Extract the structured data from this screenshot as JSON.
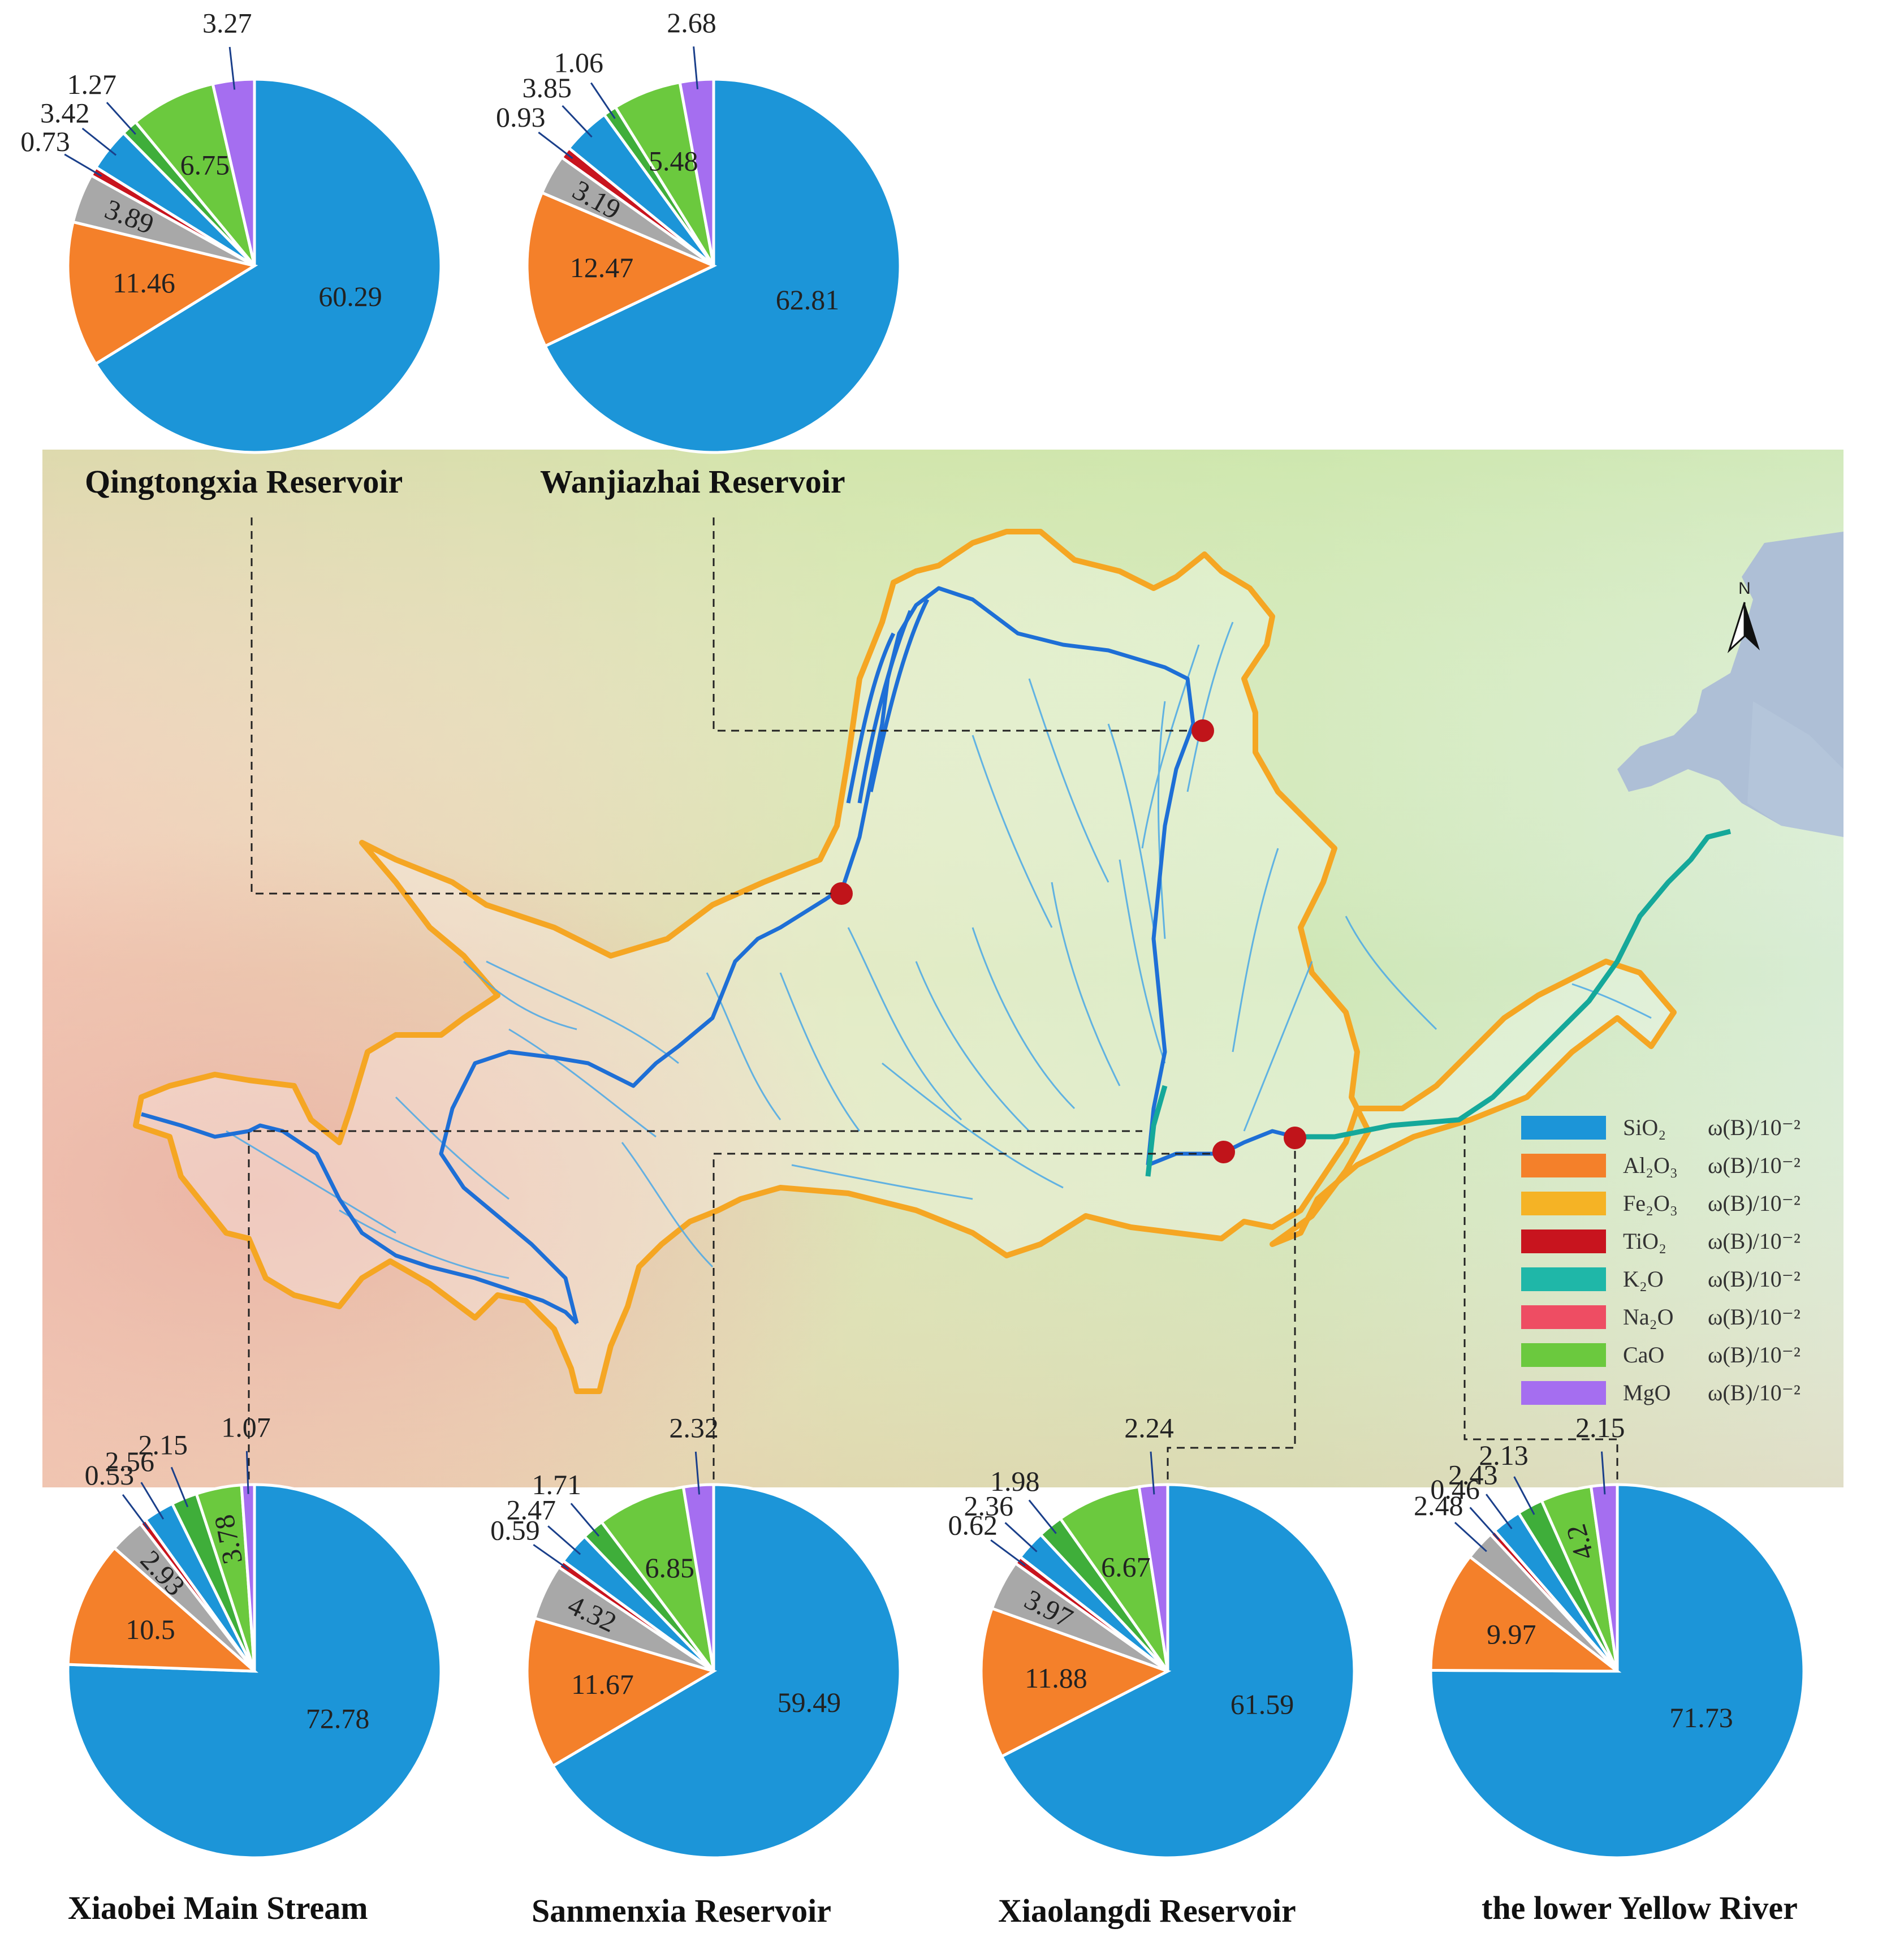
{
  "components": [
    {
      "key": "SiO2",
      "label": "SiO₂",
      "color": "#1c95d8"
    },
    {
      "key": "Al2O3",
      "label": "Al₂O₃",
      "color": "#f4802a"
    },
    {
      "key": "Fe2O3",
      "label": "Fe₂O₃",
      "color": "#f5b325"
    },
    {
      "key": "TiO2",
      "label": "TiO₂",
      "color": "#c8141e"
    },
    {
      "key": "K2O",
      "label": "K₂O",
      "color": "#1fb7a8"
    },
    {
      "key": "Na2O",
      "label": "Na₂O",
      "color": "#ee4d63"
    },
    {
      "key": "CaO",
      "label": "CaO",
      "color": "#6bc93e"
    },
    {
      "key": "MgO",
      "label": "MgO",
      "color": "#a56ef0"
    }
  ],
  "legend": {
    "unit": "ω(B)/10⁻²",
    "items": [
      {
        "comp": "SiO₂",
        "color": "#1c95d8"
      },
      {
        "comp": "Al₂O₃",
        "color": "#f4802a"
      },
      {
        "comp": "Fe₂O₃",
        "color": "#f5b325"
      },
      {
        "comp": "TiO₂",
        "color": "#c8141e"
      },
      {
        "comp": "K₂O",
        "color": "#1fb7a8"
      },
      {
        "comp": "Na₂O",
        "color": "#ee4d63"
      },
      {
        "comp": "CaO",
        "color": "#6bc93e"
      },
      {
        "comp": "MgO",
        "color": "#a56ef0"
      }
    ]
  },
  "map": {
    "north_label": "N"
  },
  "chart_data": [
    {
      "type": "pie",
      "title": "Qingtongxia Reservoir",
      "order": [
        "SiO2",
        "Al2O3",
        "Gray",
        "TiO2",
        "SmallBlue",
        "SmallGreen",
        "CaO",
        "MgO"
      ],
      "slices": [
        {
          "name": "",
          "value": 60.29,
          "color": "#1c95d8"
        },
        {
          "name": "",
          "value": 11.46,
          "color": "#f4802a"
        },
        {
          "name": "",
          "value": 3.89,
          "color": "#a8a8a8"
        },
        {
          "name": "",
          "value": 0.73,
          "color": "#c8141e"
        },
        {
          "name": "",
          "value": 3.42,
          "color": "#1c95d8"
        },
        {
          "name": "",
          "value": 1.27,
          "color": "#3fae3a"
        },
        {
          "name": "",
          "value": 6.75,
          "color": "#6bc93e"
        },
        {
          "name": "",
          "value": 3.27,
          "color": "#a56ef0"
        }
      ]
    },
    {
      "type": "pie",
      "title": "Wanjiazhai Reservoir",
      "slices": [
        {
          "name": "",
          "value": 62.81,
          "color": "#1c95d8"
        },
        {
          "name": "",
          "value": 12.47,
          "color": "#f4802a"
        },
        {
          "name": "",
          "value": 3.19,
          "color": "#a8a8a8"
        },
        {
          "name": "",
          "value": 0.93,
          "color": "#c8141e"
        },
        {
          "name": "",
          "value": 3.85,
          "color": "#1c95d8"
        },
        {
          "name": "",
          "value": 1.06,
          "color": "#3fae3a"
        },
        {
          "name": "",
          "value": 5.48,
          "color": "#6bc93e"
        },
        {
          "name": "",
          "value": 2.68,
          "color": "#a56ef0"
        }
      ]
    },
    {
      "type": "pie",
      "title": "Xiaobei Main Stream",
      "slices": [
        {
          "name": "",
          "value": 72.78,
          "color": "#1c95d8"
        },
        {
          "name": "",
          "value": 10.5,
          "color": "#f4802a"
        },
        {
          "name": "",
          "value": 2.93,
          "color": "#a8a8a8"
        },
        {
          "name": "",
          "value": 0.53,
          "color": "#c8141e"
        },
        {
          "name": "",
          "value": 2.56,
          "color": "#1c95d8"
        },
        {
          "name": "",
          "value": 2.15,
          "color": "#3fae3a"
        },
        {
          "name": "",
          "value": 3.78,
          "color": "#6bc93e"
        },
        {
          "name": "",
          "value": 1.07,
          "color": "#a56ef0"
        }
      ]
    },
    {
      "type": "pie",
      "title": "Sanmenxia Reservoir",
      "slices": [
        {
          "name": "",
          "value": 59.49,
          "color": "#1c95d8"
        },
        {
          "name": "",
          "value": 11.67,
          "color": "#f4802a"
        },
        {
          "name": "",
          "value": 4.32,
          "color": "#a8a8a8"
        },
        {
          "name": "",
          "value": 0.59,
          "color": "#c8141e"
        },
        {
          "name": "",
          "value": 2.47,
          "color": "#1c95d8"
        },
        {
          "name": "",
          "value": 1.71,
          "color": "#3fae3a"
        },
        {
          "name": "",
          "value": 6.85,
          "color": "#6bc93e"
        },
        {
          "name": "",
          "value": 2.32,
          "color": "#a56ef0"
        }
      ]
    },
    {
      "type": "pie",
      "title": "Xiaolangdi Reservoir",
      "slices": [
        {
          "name": "",
          "value": 61.59,
          "color": "#1c95d8"
        },
        {
          "name": "",
          "value": 11.88,
          "color": "#f4802a"
        },
        {
          "name": "",
          "value": 3.97,
          "color": "#a8a8a8"
        },
        {
          "name": "",
          "value": 0.62,
          "color": "#c8141e"
        },
        {
          "name": "",
          "value": 2.36,
          "color": "#1c95d8"
        },
        {
          "name": "",
          "value": 1.98,
          "color": "#3fae3a"
        },
        {
          "name": "",
          "value": 6.67,
          "color": "#6bc93e"
        },
        {
          "name": "",
          "value": 2.24,
          "color": "#a56ef0"
        }
      ]
    },
    {
      "type": "pie",
      "title": "the lower Yellow River",
      "slices": [
        {
          "name": "",
          "value": 71.73,
          "color": "#1c95d8"
        },
        {
          "name": "",
          "value": 9.97,
          "color": "#f4802a"
        },
        {
          "name": "",
          "value": 2.48,
          "color": "#a8a8a8"
        },
        {
          "name": "",
          "value": 0.46,
          "color": "#c8141e"
        },
        {
          "name": "",
          "value": 2.43,
          "color": "#1c95d8"
        },
        {
          "name": "",
          "value": 2.13,
          "color": "#3fae3a"
        },
        {
          "name": "",
          "value": 4.2,
          "color": "#6bc93e"
        },
        {
          "name": "",
          "value": 2.15,
          "color": "#a56ef0"
        }
      ]
    }
  ]
}
